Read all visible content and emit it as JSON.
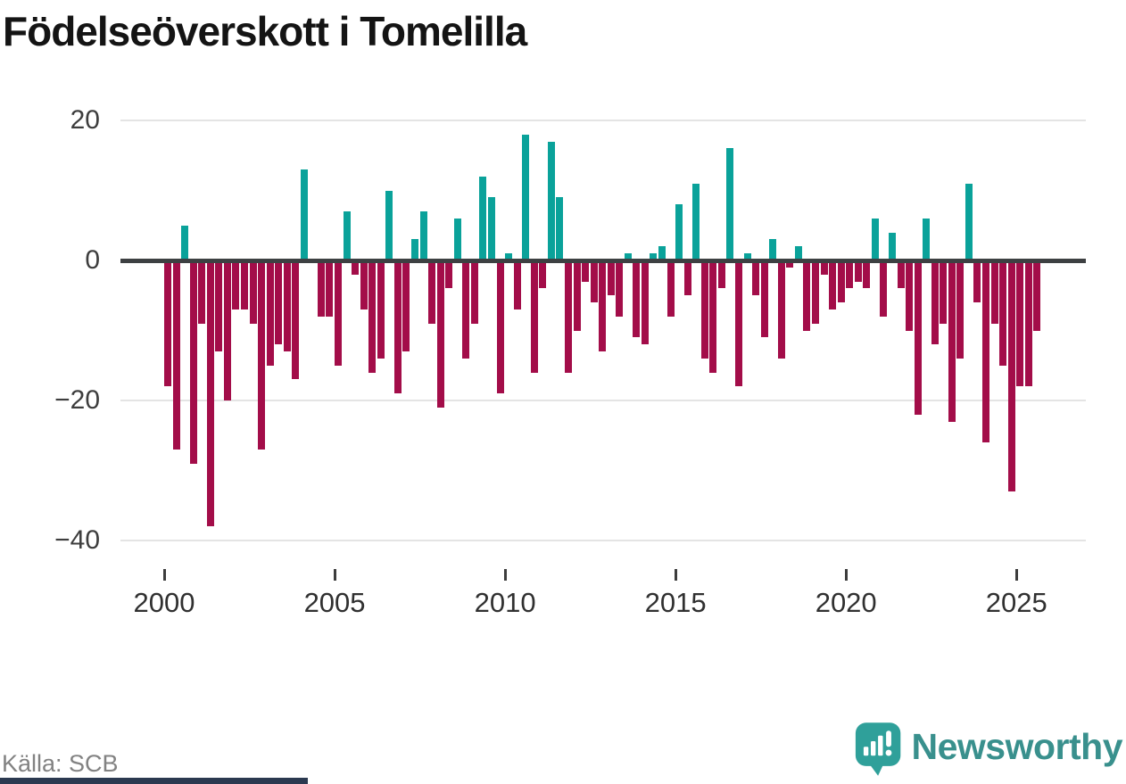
{
  "header": {
    "title": "Födelseöverskott i Tomelilla"
  },
  "footer": {
    "source": "Källa: SCB",
    "brand": "Newsworthy"
  },
  "colors": {
    "positive": "#0aa29a",
    "negative": "#a30d49",
    "axis": "#3d4042",
    "grid": "#e4e4e4",
    "brand_teal": "#39908d",
    "brand_icon": "#2fa09a",
    "strip_navy": "#2b3950"
  },
  "chart_data": {
    "type": "bar",
    "title": "Födelseöverskott i Tomelilla",
    "xlabel": "",
    "ylabel": "",
    "ylim": [
      -40,
      20
    ],
    "grid": "horizontal",
    "legend": "none",
    "yticks": [
      {
        "value": 20,
        "label": "20"
      },
      {
        "value": 0,
        "label": "0"
      },
      {
        "value": -20,
        "label": "−20"
      },
      {
        "value": -40,
        "label": "−40"
      }
    ],
    "xticks": [
      {
        "year": 2000,
        "label": "2000"
      },
      {
        "year": 2005,
        "label": "2005"
      },
      {
        "year": 2010,
        "label": "2010"
      },
      {
        "year": 2015,
        "label": "2015"
      },
      {
        "year": 2020,
        "label": "2020"
      },
      {
        "year": 2025,
        "label": "2025"
      }
    ],
    "x": [
      "2000Q1",
      "2000Q2",
      "2000Q3",
      "2000Q4",
      "2001Q1",
      "2001Q2",
      "2001Q3",
      "2001Q4",
      "2002Q1",
      "2002Q2",
      "2002Q3",
      "2002Q4",
      "2003Q1",
      "2003Q2",
      "2003Q3",
      "2003Q4",
      "2004Q1",
      "2004Q2",
      "2004Q3",
      "2004Q4",
      "2005Q1",
      "2005Q2",
      "2005Q3",
      "2005Q4",
      "2006Q1",
      "2006Q2",
      "2006Q3",
      "2006Q4",
      "2007Q1",
      "2007Q2",
      "2007Q3",
      "2007Q4",
      "2008Q1",
      "2008Q2",
      "2008Q3",
      "2008Q4",
      "2009Q1",
      "2009Q2",
      "2009Q3",
      "2009Q4",
      "2010Q1",
      "2010Q2",
      "2010Q3",
      "2010Q4",
      "2011Q1",
      "2011Q2",
      "2011Q3",
      "2011Q4",
      "2012Q1",
      "2012Q2",
      "2012Q3",
      "2012Q4",
      "2013Q1",
      "2013Q2",
      "2013Q3",
      "2013Q4",
      "2014Q1",
      "2014Q2",
      "2014Q3",
      "2014Q4",
      "2015Q1",
      "2015Q2",
      "2015Q3",
      "2015Q4",
      "2016Q1",
      "2016Q2",
      "2016Q3",
      "2016Q4",
      "2017Q1",
      "2017Q2",
      "2017Q3",
      "2017Q4",
      "2018Q1",
      "2018Q2",
      "2018Q3",
      "2018Q4",
      "2019Q1",
      "2019Q2",
      "2019Q3",
      "2019Q4",
      "2020Q1",
      "2020Q2",
      "2020Q3",
      "2020Q4",
      "2021Q1",
      "2021Q2",
      "2021Q3",
      "2021Q4",
      "2022Q1",
      "2022Q2",
      "2022Q3",
      "2022Q4",
      "2023Q1",
      "2023Q2",
      "2023Q3",
      "2023Q4",
      "2024Q1",
      "2024Q2",
      "2024Q3",
      "2024Q4",
      "2025Q1",
      "2025Q2",
      "2025Q3"
    ],
    "values": [
      -18,
      -27,
      5,
      -29,
      -9,
      -38,
      -13,
      -20,
      -7,
      -7,
      -9,
      -27,
      -15,
      -12,
      -13,
      -17,
      13,
      0,
      -8,
      -8,
      -15,
      7,
      -2,
      -7,
      -16,
      -14,
      10,
      -19,
      -13,
      3,
      7,
      -9,
      -21,
      -4,
      6,
      -14,
      -9,
      12,
      9,
      -19,
      1,
      -7,
      18,
      -16,
      -4,
      17,
      9,
      -16,
      -10,
      -3,
      -6,
      -13,
      -5,
      -8,
      1,
      -11,
      -12,
      1,
      2,
      -8,
      8,
      -5,
      11,
      -14,
      -16,
      -4,
      16,
      -18,
      1,
      -5,
      -11,
      3,
      -14,
      -1,
      2,
      -10,
      -9,
      -2,
      -7,
      -6,
      -4,
      -3,
      -4,
      6,
      -8,
      4,
      -4,
      -10,
      -22,
      6,
      -12,
      -9,
      -23,
      -14,
      11,
      -6,
      -26,
      -9,
      -15,
      -33,
      -18,
      -18,
      -10
    ]
  }
}
